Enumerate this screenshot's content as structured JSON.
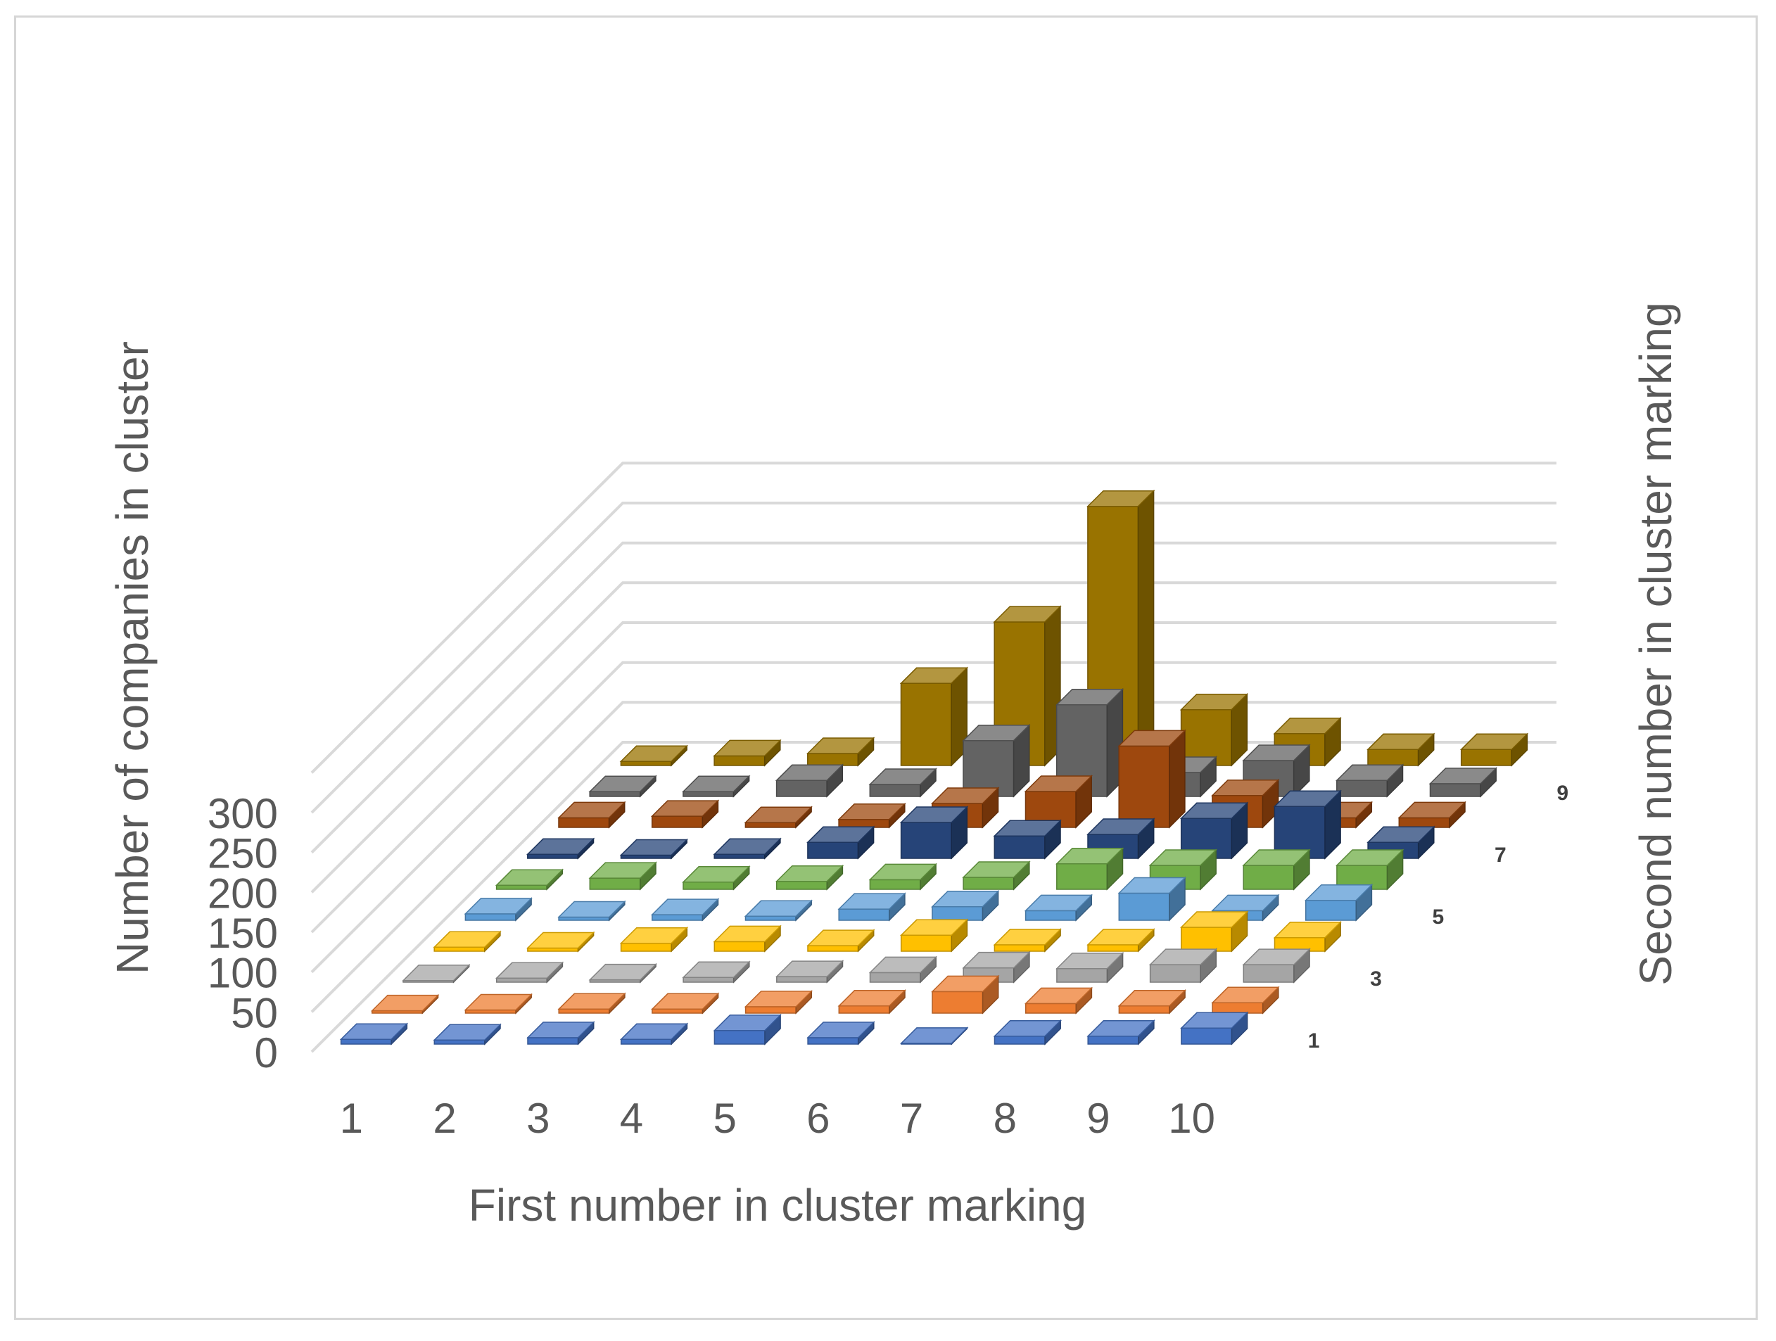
{
  "chart_data": {
    "type": "bar3d",
    "xlabel": "First number in cluster marking",
    "ylabel": "Number of companies in cluster",
    "zlabel": "Second number in cluster marking",
    "x_categories": [
      "1",
      "2",
      "3",
      "4",
      "5",
      "6",
      "7",
      "8",
      "9",
      "10"
    ],
    "y_ticks": [
      "0",
      "50",
      "100",
      "150",
      "200",
      "250",
      "300"
    ],
    "z_tick_labels": [
      "1",
      "3",
      "5",
      "7",
      "9"
    ],
    "ylim": [
      0,
      350
    ],
    "grid": true,
    "legend": "none",
    "series": [
      {
        "row": 1,
        "color": "#4472c4",
        "values": [
          6,
          5,
          8,
          6,
          17,
          8,
          1,
          10,
          10,
          20
        ]
      },
      {
        "row": 2,
        "color": "#ed7d31",
        "values": [
          3,
          4,
          5,
          5,
          8,
          9,
          27,
          12,
          9,
          13
        ]
      },
      {
        "row": 3,
        "color": "#a5a5a5",
        "values": [
          2,
          5,
          3,
          6,
          7,
          12,
          18,
          17,
          22,
          22
        ]
      },
      {
        "row": 4,
        "color": "#ffc000",
        "values": [
          5,
          4,
          10,
          12,
          7,
          20,
          8,
          8,
          30,
          17
        ]
      },
      {
        "row": 5,
        "color": "#5b9bd5",
        "values": [
          8,
          4,
          7,
          5,
          14,
          17,
          12,
          34,
          12,
          25
        ]
      },
      {
        "row": 6,
        "color": "#70ad47",
        "values": [
          5,
          14,
          9,
          10,
          12,
          15,
          32,
          30,
          30,
          30
        ]
      },
      {
        "row": 7,
        "color": "#264478",
        "values": [
          5,
          4,
          5,
          20,
          45,
          28,
          30,
          50,
          65,
          20
        ]
      },
      {
        "row": 8,
        "color": "#9e480e",
        "values": [
          12,
          14,
          6,
          10,
          30,
          45,
          102,
          40,
          12,
          12
        ]
      },
      {
        "row": 9,
        "color": "#636363",
        "values": [
          6,
          6,
          20,
          15,
          70,
          115,
          30,
          45,
          20,
          16
        ]
      },
      {
        "row": 10,
        "color": "#997300",
        "values": [
          5,
          12,
          15,
          103,
          180,
          325,
          70,
          40,
          20,
          20
        ]
      }
    ]
  }
}
